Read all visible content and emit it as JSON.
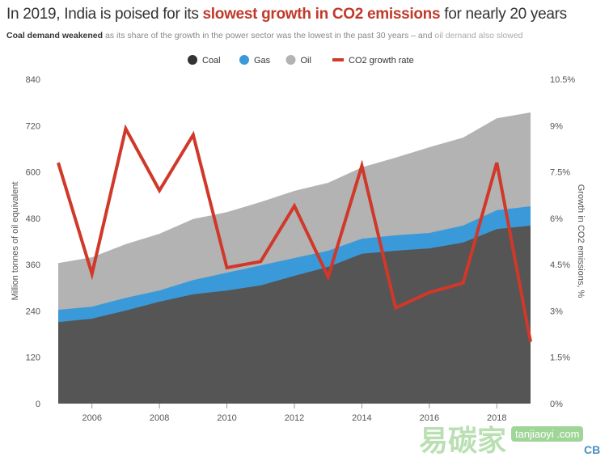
{
  "chart_data": {
    "type": "area",
    "title_parts": [
      "In 2019, India is poised for its ",
      "slowest growth in CO2 emissions",
      " for nearly 20 years"
    ],
    "subtitle_parts": [
      "Coal demand weakened",
      " as its share of the growth in the power sector was the lowest in the past 30 years – and ",
      "oil demand also slowed"
    ],
    "ylabel": "Million tonnes of oil equivalent",
    "y2label": "Growth in CO2 emissions, %",
    "x": [
      2005,
      2006,
      2007,
      2008,
      2009,
      2010,
      2011,
      2012,
      2013,
      2014,
      2015,
      2016,
      2017,
      2018,
      2019
    ],
    "xticks": [
      "2006",
      "2008",
      "2010",
      "2012",
      "2014",
      "2016",
      "2018"
    ],
    "yticks": [
      "0",
      "120",
      "240",
      "360",
      "480",
      "600",
      "720",
      "840"
    ],
    "y2ticks": [
      "0%",
      "1.5%",
      "3%",
      "4.5%",
      "6%",
      "7.5%",
      "9%",
      "10.5%"
    ],
    "ylim": [
      0,
      840
    ],
    "y2lim": [
      0,
      10.5
    ],
    "legend_position": "top-center",
    "grid": false,
    "series": [
      {
        "name": "Coal",
        "type": "stacked-area",
        "color": "#555555",
        "values": [
          211,
          220,
          241,
          264,
          283,
          293,
          306,
          331,
          354,
          388,
          396,
          402,
          417,
          452,
          461
        ]
      },
      {
        "name": "Gas",
        "type": "stacked-area",
        "color": "#3a9ad9",
        "values": [
          32,
          31,
          33,
          29,
          37,
          46,
          52,
          46,
          42,
          39,
          40,
          40,
          44,
          49,
          50
        ]
      },
      {
        "name": "Oil",
        "type": "stacked-area",
        "color": "#b3b3b3",
        "values": [
          121,
          128,
          139,
          147,
          158,
          157,
          164,
          174,
          176,
          185,
          201,
          222,
          228,
          238,
          243
        ]
      },
      {
        "name": "CO2 growth rate",
        "type": "line",
        "axis": "right",
        "color": "#d0382a",
        "values": [
          7.8,
          4.2,
          8.9,
          6.9,
          8.7,
          4.4,
          4.6,
          6.4,
          4.1,
          7.7,
          3.1,
          3.6,
          3.9,
          7.8,
          2.0
        ]
      }
    ]
  },
  "watermark": {
    "chinese": "易碳家",
    "site": "tanjiaoyi .com",
    "logo": "CB"
  }
}
